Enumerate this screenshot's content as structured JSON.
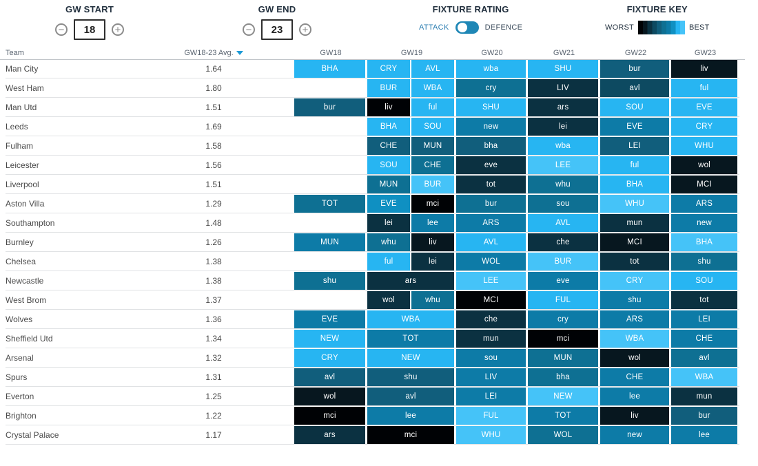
{
  "controls": {
    "gw_start": {
      "label": "GW START",
      "value": "18",
      "minus": "−",
      "plus": "+"
    },
    "gw_end": {
      "label": "GW END",
      "value": "23",
      "minus": "−",
      "plus": "+"
    },
    "fixture_rating": {
      "label": "FIXTURE RATING",
      "left": "ATTACK",
      "right": "DEFENCE",
      "state": "attack"
    },
    "fixture_key": {
      "label": "FIXTURE KEY",
      "worst": "WORST",
      "best": "BEST"
    }
  },
  "palette": {
    "1": "#000205",
    "2": "#07171f",
    "3": "#0b3141",
    "4": "#0d4a61",
    "5": "#115e7c",
    "6": "#0e7093",
    "7": "#0d7ba7",
    "8": "#0f90c2",
    "9": "#27b5f2",
    "10": "#45c3f8"
  },
  "table": {
    "columns": [
      "Team",
      "GW18-23 Avg.",
      "GW18",
      "GW19",
      "GW20",
      "GW21",
      "GW22",
      "GW23"
    ],
    "rows": [
      {
        "team": "Man City",
        "avg": "1.64",
        "fixtures": {
          "gw18": [
            {
              "label": "BHA",
              "rating": 9
            }
          ],
          "gw19": [
            {
              "label": "CRY",
              "rating": 9
            },
            {
              "label": "AVL",
              "rating": 9
            }
          ],
          "gw20": [
            {
              "label": "wba",
              "rating": 9
            }
          ],
          "gw21": [
            {
              "label": "SHU",
              "rating": 9
            }
          ],
          "gw22": [
            {
              "label": "bur",
              "rating": 5
            }
          ],
          "gw23": [
            {
              "label": "liv",
              "rating": 2
            }
          ]
        }
      },
      {
        "team": "West Ham",
        "avg": "1.80",
        "fixtures": {
          "gw18": [],
          "gw19": [
            {
              "label": "BUR",
              "rating": 9
            },
            {
              "label": "WBA",
              "rating": 9
            }
          ],
          "gw20": [
            {
              "label": "cry",
              "rating": 6
            }
          ],
          "gw21": [
            {
              "label": "LIV",
              "rating": 3
            }
          ],
          "gw22": [
            {
              "label": "avl",
              "rating": 4
            }
          ],
          "gw23": [
            {
              "label": "ful",
              "rating": 9
            }
          ]
        }
      },
      {
        "team": "Man Utd",
        "avg": "1.51",
        "fixtures": {
          "gw18": [
            {
              "label": "bur",
              "rating": 5
            }
          ],
          "gw19": [
            {
              "label": "liv",
              "rating": 1
            },
            {
              "label": "ful",
              "rating": 9
            }
          ],
          "gw20": [
            {
              "label": "SHU",
              "rating": 9
            }
          ],
          "gw21": [
            {
              "label": "ars",
              "rating": 3
            }
          ],
          "gw22": [
            {
              "label": "SOU",
              "rating": 9
            }
          ],
          "gw23": [
            {
              "label": "EVE",
              "rating": 9
            }
          ]
        }
      },
      {
        "team": "Leeds",
        "avg": "1.69",
        "fixtures": {
          "gw18": [],
          "gw19": [
            {
              "label": "BHA",
              "rating": 9
            },
            {
              "label": "SOU",
              "rating": 9
            }
          ],
          "gw20": [
            {
              "label": "new",
              "rating": 7
            }
          ],
          "gw21": [
            {
              "label": "lei",
              "rating": 3
            }
          ],
          "gw22": [
            {
              "label": "EVE",
              "rating": 7
            }
          ],
          "gw23": [
            {
              "label": "CRY",
              "rating": 9
            }
          ]
        }
      },
      {
        "team": "Fulham",
        "avg": "1.58",
        "fixtures": {
          "gw18": [],
          "gw19": [
            {
              "label": "CHE",
              "rating": 5
            },
            {
              "label": "MUN",
              "rating": 5
            }
          ],
          "gw20": [
            {
              "label": "bha",
              "rating": 5
            }
          ],
          "gw21": [
            {
              "label": "wba",
              "rating": 9
            }
          ],
          "gw22": [
            {
              "label": "LEI",
              "rating": 5
            }
          ],
          "gw23": [
            {
              "label": "WHU",
              "rating": 9
            }
          ]
        }
      },
      {
        "team": "Leicester",
        "avg": "1.56",
        "fixtures": {
          "gw18": [],
          "gw19": [
            {
              "label": "SOU",
              "rating": 9
            },
            {
              "label": "CHE",
              "rating": 6
            }
          ],
          "gw20": [
            {
              "label": "eve",
              "rating": 3
            }
          ],
          "gw21": [
            {
              "label": "LEE",
              "rating": 10
            }
          ],
          "gw22": [
            {
              "label": "ful",
              "rating": 9
            }
          ],
          "gw23": [
            {
              "label": "wol",
              "rating": 2
            }
          ]
        }
      },
      {
        "team": "Liverpool",
        "avg": "1.51",
        "fixtures": {
          "gw18": [],
          "gw19": [
            {
              "label": "MUN",
              "rating": 6
            },
            {
              "label": "BUR",
              "rating": 10
            }
          ],
          "gw20": [
            {
              "label": "tot",
              "rating": 3
            }
          ],
          "gw21": [
            {
              "label": "whu",
              "rating": 6
            }
          ],
          "gw22": [
            {
              "label": "BHA",
              "rating": 9
            }
          ],
          "gw23": [
            {
              "label": "MCI",
              "rating": 2
            }
          ]
        }
      },
      {
        "team": "Aston Villa",
        "avg": "1.29",
        "fixtures": {
          "gw18": [
            {
              "label": "TOT",
              "rating": 6
            }
          ],
          "gw19": [
            {
              "label": "EVE",
              "rating": 8
            },
            {
              "label": "mci",
              "rating": 1
            }
          ],
          "gw20": [
            {
              "label": "bur",
              "rating": 6
            }
          ],
          "gw21": [
            {
              "label": "sou",
              "rating": 6
            }
          ],
          "gw22": [
            {
              "label": "WHU",
              "rating": 10
            }
          ],
          "gw23": [
            {
              "label": "ARS",
              "rating": 7
            }
          ]
        }
      },
      {
        "team": "Southampton",
        "avg": "1.48",
        "fixtures": {
          "gw18": [],
          "gw19": [
            {
              "label": "lei",
              "rating": 3
            },
            {
              "label": "lee",
              "rating": 7
            }
          ],
          "gw20": [
            {
              "label": "ARS",
              "rating": 7
            }
          ],
          "gw21": [
            {
              "label": "AVL",
              "rating": 9
            }
          ],
          "gw22": [
            {
              "label": "mun",
              "rating": 3
            }
          ],
          "gw23": [
            {
              "label": "new",
              "rating": 7
            }
          ]
        }
      },
      {
        "team": "Burnley",
        "avg": "1.26",
        "fixtures": {
          "gw18": [
            {
              "label": "MUN",
              "rating": 7
            }
          ],
          "gw19": [
            {
              "label": "whu",
              "rating": 6
            },
            {
              "label": "liv",
              "rating": 2
            }
          ],
          "gw20": [
            {
              "label": "AVL",
              "rating": 9
            }
          ],
          "gw21": [
            {
              "label": "che",
              "rating": 3
            }
          ],
          "gw22": [
            {
              "label": "MCI",
              "rating": 2
            }
          ],
          "gw23": [
            {
              "label": "BHA",
              "rating": 10
            }
          ]
        }
      },
      {
        "team": "Chelsea",
        "avg": "1.38",
        "fixtures": {
          "gw18": [],
          "gw19": [
            {
              "label": "ful",
              "rating": 9
            },
            {
              "label": "lei",
              "rating": 3
            }
          ],
          "gw20": [
            {
              "label": "WOL",
              "rating": 7
            }
          ],
          "gw21": [
            {
              "label": "BUR",
              "rating": 10
            }
          ],
          "gw22": [
            {
              "label": "tot",
              "rating": 3
            }
          ],
          "gw23": [
            {
              "label": "shu",
              "rating": 6
            }
          ]
        }
      },
      {
        "team": "Newcastle",
        "avg": "1.38",
        "fixtures": {
          "gw18": [
            {
              "label": "shu",
              "rating": 6
            }
          ],
          "gw19": [
            {
              "label": "ars",
              "rating": 3
            }
          ],
          "gw20": [
            {
              "label": "LEE",
              "rating": 10
            }
          ],
          "gw21": [
            {
              "label": "eve",
              "rating": 7
            }
          ],
          "gw22": [
            {
              "label": "CRY",
              "rating": 10
            }
          ],
          "gw23": [
            {
              "label": "SOU",
              "rating": 9
            }
          ]
        }
      },
      {
        "team": "West Brom",
        "avg": "1.37",
        "fixtures": {
          "gw18": [],
          "gw19": [
            {
              "label": "wol",
              "rating": 3
            },
            {
              "label": "whu",
              "rating": 6
            }
          ],
          "gw20": [
            {
              "label": "MCI",
              "rating": 1
            }
          ],
          "gw21": [
            {
              "label": "FUL",
              "rating": 9
            }
          ],
          "gw22": [
            {
              "label": "shu",
              "rating": 7
            }
          ],
          "gw23": [
            {
              "label": "tot",
              "rating": 3
            }
          ]
        }
      },
      {
        "team": "Wolves",
        "avg": "1.36",
        "fixtures": {
          "gw18": [
            {
              "label": "EVE",
              "rating": 7
            }
          ],
          "gw19": [
            {
              "label": "WBA",
              "rating": 9
            }
          ],
          "gw20": [
            {
              "label": "che",
              "rating": 3
            }
          ],
          "gw21": [
            {
              "label": "cry",
              "rating": 7
            }
          ],
          "gw22": [
            {
              "label": "ARS",
              "rating": 7
            }
          ],
          "gw23": [
            {
              "label": "LEI",
              "rating": 7
            }
          ]
        }
      },
      {
        "team": "Sheffield Utd",
        "avg": "1.34",
        "fixtures": {
          "gw18": [
            {
              "label": "NEW",
              "rating": 9
            }
          ],
          "gw19": [
            {
              "label": "TOT",
              "rating": 7
            }
          ],
          "gw20": [
            {
              "label": "mun",
              "rating": 3
            }
          ],
          "gw21": [
            {
              "label": "mci",
              "rating": 1
            }
          ],
          "gw22": [
            {
              "label": "WBA",
              "rating": 10
            }
          ],
          "gw23": [
            {
              "label": "CHE",
              "rating": 7
            }
          ]
        }
      },
      {
        "team": "Arsenal",
        "avg": "1.32",
        "fixtures": {
          "gw18": [
            {
              "label": "CRY",
              "rating": 9
            }
          ],
          "gw19": [
            {
              "label": "NEW",
              "rating": 9
            }
          ],
          "gw20": [
            {
              "label": "sou",
              "rating": 7
            }
          ],
          "gw21": [
            {
              "label": "MUN",
              "rating": 6
            }
          ],
          "gw22": [
            {
              "label": "wol",
              "rating": 2
            }
          ],
          "gw23": [
            {
              "label": "avl",
              "rating": 6
            }
          ]
        }
      },
      {
        "team": "Spurs",
        "avg": "1.31",
        "fixtures": {
          "gw18": [
            {
              "label": "avl",
              "rating": 5
            }
          ],
          "gw19": [
            {
              "label": "shu",
              "rating": 5
            }
          ],
          "gw20": [
            {
              "label": "LIV",
              "rating": 7
            }
          ],
          "gw21": [
            {
              "label": "bha",
              "rating": 6
            }
          ],
          "gw22": [
            {
              "label": "CHE",
              "rating": 7
            }
          ],
          "gw23": [
            {
              "label": "WBA",
              "rating": 10
            }
          ]
        }
      },
      {
        "team": "Everton",
        "avg": "1.25",
        "fixtures": {
          "gw18": [
            {
              "label": "wol",
              "rating": 2
            }
          ],
          "gw19": [
            {
              "label": "avl",
              "rating": 5
            }
          ],
          "gw20": [
            {
              "label": "LEI",
              "rating": 7
            }
          ],
          "gw21": [
            {
              "label": "NEW",
              "rating": 10
            }
          ],
          "gw22": [
            {
              "label": "lee",
              "rating": 7
            }
          ],
          "gw23": [
            {
              "label": "mun",
              "rating": 3
            }
          ]
        }
      },
      {
        "team": "Brighton",
        "avg": "1.22",
        "fixtures": {
          "gw18": [
            {
              "label": "mci",
              "rating": 1
            }
          ],
          "gw19": [
            {
              "label": "lee",
              "rating": 7
            }
          ],
          "gw20": [
            {
              "label": "FUL",
              "rating": 10
            }
          ],
          "gw21": [
            {
              "label": "TOT",
              "rating": 7
            }
          ],
          "gw22": [
            {
              "label": "liv",
              "rating": 2
            }
          ],
          "gw23": [
            {
              "label": "bur",
              "rating": 5
            }
          ]
        }
      },
      {
        "team": "Crystal Palace",
        "avg": "1.17",
        "fixtures": {
          "gw18": [
            {
              "label": "ars",
              "rating": 3
            }
          ],
          "gw19": [
            {
              "label": "mci",
              "rating": 1
            }
          ],
          "gw20": [
            {
              "label": "WHU",
              "rating": 10
            }
          ],
          "gw21": [
            {
              "label": "WOL",
              "rating": 6
            }
          ],
          "gw22": [
            {
              "label": "new",
              "rating": 7
            }
          ],
          "gw23": [
            {
              "label": "lee",
              "rating": 7
            }
          ]
        }
      }
    ]
  }
}
